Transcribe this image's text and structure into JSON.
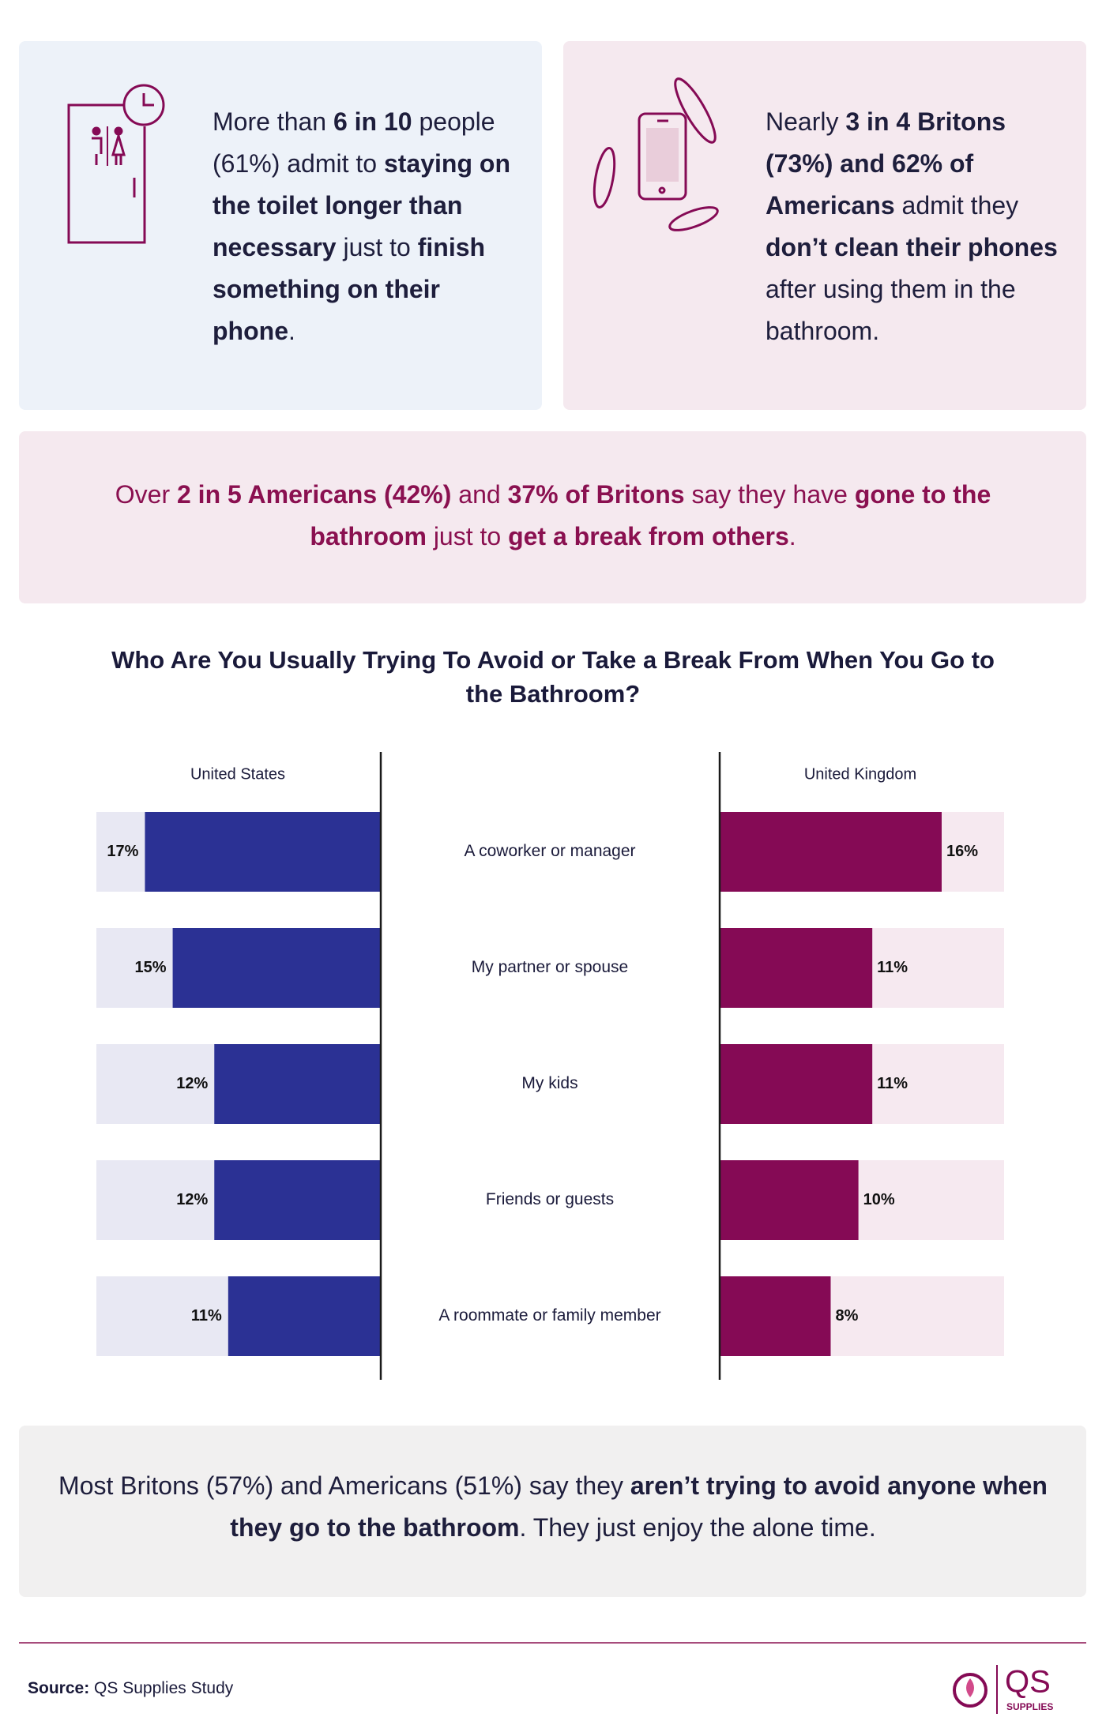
{
  "cards": [
    {
      "segments": [
        {
          "text": "More than "
        },
        {
          "text": "6 in 10",
          "bold": true
        },
        {
          "text": " people (61%) admit to "
        },
        {
          "text": "staying on the toilet longer than necessary",
          "bold": true
        },
        {
          "text": " just to "
        },
        {
          "text": "finish something on their phone",
          "bold": true
        },
        {
          "text": "."
        }
      ]
    },
    {
      "segments": [
        {
          "text": "Nearly "
        },
        {
          "text": "3 in 4 Britons (73%) and 62% of Americans",
          "bold": true
        },
        {
          "text": " admit they "
        },
        {
          "text": "don’t clean their phones",
          "bold": true
        },
        {
          "text": " after using them in the bathroom."
        }
      ]
    },
    {
      "segments": [
        {
          "text": "Over "
        },
        {
          "text": "2 in 5 Americans (42%)",
          "bold": true
        },
        {
          "text": " and "
        },
        {
          "text": "37% of Britons",
          "bold": true
        },
        {
          "text": " say they have "
        },
        {
          "text": "gone to the bathroom",
          "bold": true
        },
        {
          "text": " just to "
        },
        {
          "text": "get a break from others",
          "bold": true
        },
        {
          "text": "."
        }
      ]
    },
    {
      "segments": [
        {
          "text": "Most Britons (57%) and Americans (51%) say they "
        },
        {
          "text": "aren’t trying to avoid anyone when they go to the bathroom",
          "bold": true
        },
        {
          "text": ". They just enjoy the alone time."
        }
      ]
    }
  ],
  "chart_data": {
    "type": "bar",
    "title": "Who Are You Usually Trying To Avoid or Take a Break From When You Go to the Bathroom?",
    "categories": [
      "A coworker or manager",
      "My partner or spouse",
      "My kids",
      "Friends or guests",
      "A roommate or family member"
    ],
    "xlim": [
      0,
      20.5
    ],
    "series": [
      {
        "name": "United States",
        "color": "#2b3194",
        "track_color": "#e8e8f3",
        "values": [
          17,
          15,
          12,
          12,
          11
        ],
        "value_labels": [
          "17%",
          "15%",
          "12%",
          "12%",
          "11%"
        ]
      },
      {
        "name": "United Kingdom",
        "color": "#850a55",
        "track_color": "#f6e9f0",
        "values": [
          16,
          11,
          11,
          10,
          8
        ],
        "value_labels": [
          "16%",
          "11%",
          "11%",
          "10%",
          "8%"
        ]
      }
    ]
  },
  "footer": {
    "source_label": "Source:",
    "source": " QS Supplies Study",
    "logo_name": "QS",
    "logo_tagline": "SUPPLIES"
  }
}
